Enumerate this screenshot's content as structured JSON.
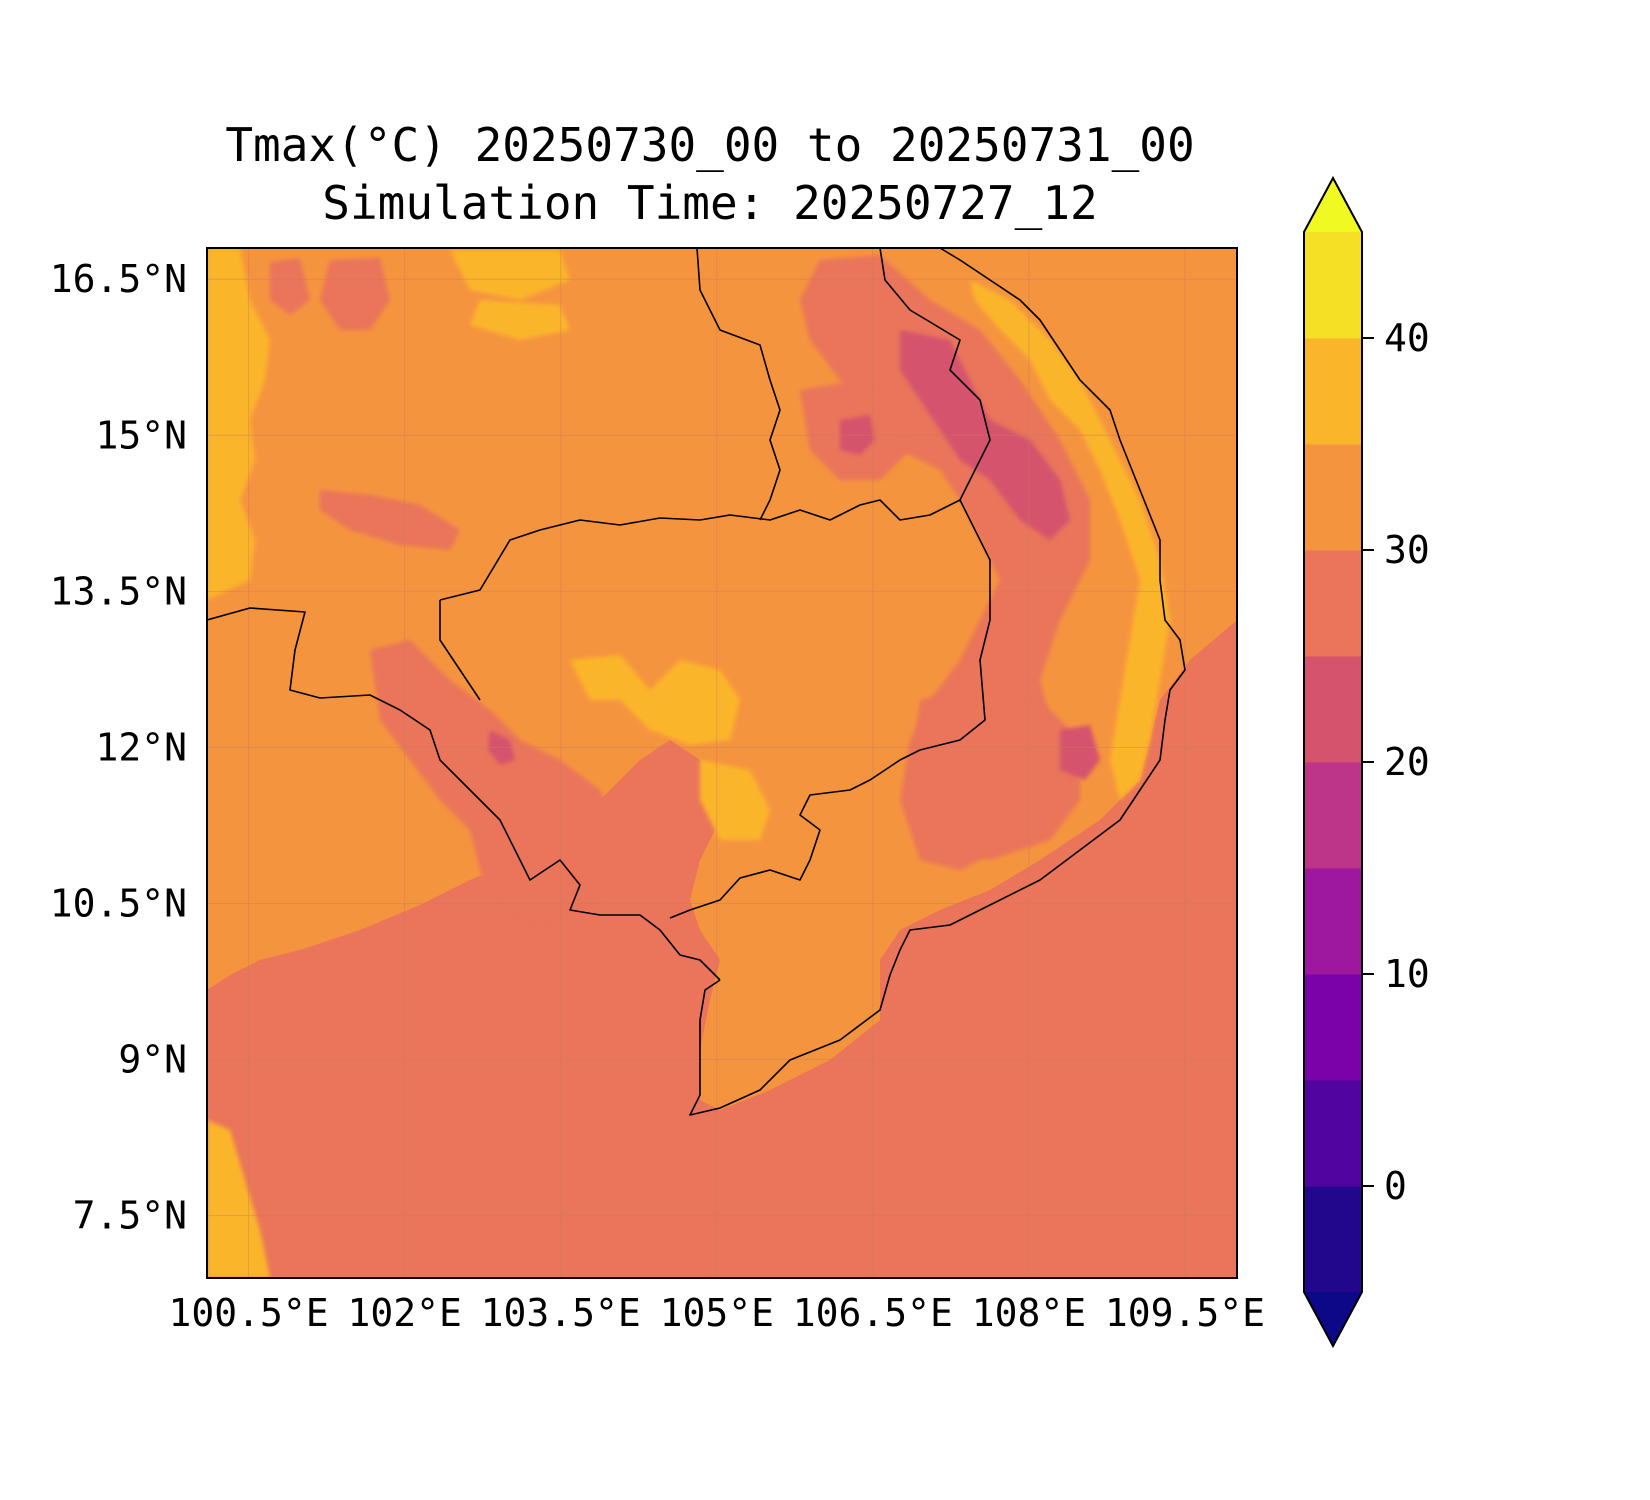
{
  "title_line_1": "Tmax(°C) 20250730_00 to 20250731_00",
  "title_line_2": "Simulation Time: 20250727_12",
  "map": {
    "variable": "Tmax(°C)",
    "lon_range": [
      100.1,
      110.0
    ],
    "lat_range": [
      6.9,
      16.8
    ],
    "lon_ticks": [
      "100.5°E",
      "102°E",
      "103.5°E",
      "105°E",
      "106.5°E",
      "108°E",
      "109.5°E"
    ],
    "lon_tick_values": [
      100.5,
      102,
      103.5,
      105,
      106.5,
      108,
      109.5
    ],
    "lat_ticks": [
      "16.5°N",
      "15°N",
      "13.5°N",
      "12°N",
      "10.5°N",
      "9°N",
      "7.5°N"
    ],
    "lat_tick_values": [
      16.5,
      15,
      13.5,
      12,
      10.5,
      9,
      7.5
    ],
    "gridlines": true,
    "background_level_color": "#f5943f",
    "sea_level_color": "#ea755a"
  },
  "colorbar": {
    "levels": [
      -5,
      0,
      5,
      10,
      15,
      20,
      25,
      30,
      35,
      40,
      45
    ],
    "colors": [
      "#22078d",
      "#5104a0",
      "#7a02a8",
      "#9d179f",
      "#bc3588",
      "#d5536d",
      "#ea755a",
      "#f5943f",
      "#fbb52b",
      "#f5e025"
    ],
    "under_color": "#0d0887",
    "over_color": "#f0f921",
    "ticks": [
      "0",
      "10",
      "20",
      "30",
      "40"
    ],
    "tick_values": [
      0,
      10,
      20,
      30,
      40
    ],
    "extend": "both"
  }
}
